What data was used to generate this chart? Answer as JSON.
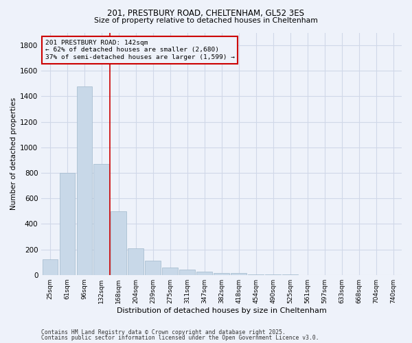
{
  "title1": "201, PRESTBURY ROAD, CHELTENHAM, GL52 3ES",
  "title2": "Size of property relative to detached houses in Cheltenham",
  "xlabel": "Distribution of detached houses by size in Cheltenham",
  "ylabel": "Number of detached properties",
  "categories": [
    "25sqm",
    "61sqm",
    "96sqm",
    "132sqm",
    "168sqm",
    "204sqm",
    "239sqm",
    "275sqm",
    "311sqm",
    "347sqm",
    "382sqm",
    "418sqm",
    "454sqm",
    "490sqm",
    "525sqm",
    "561sqm",
    "597sqm",
    "633sqm",
    "668sqm",
    "704sqm",
    "740sqm"
  ],
  "values": [
    120,
    800,
    1480,
    870,
    500,
    210,
    110,
    60,
    40,
    25,
    15,
    15,
    5,
    3,
    2,
    1,
    1,
    0,
    0,
    0,
    0
  ],
  "bar_color": "#c8d8e8",
  "bar_edge_color": "#a0b8cc",
  "vline_color": "#cc0000",
  "vline_x_index": 3,
  "annotation_text": "201 PRESTBURY ROAD: 142sqm\n← 62% of detached houses are smaller (2,680)\n37% of semi-detached houses are larger (1,599) →",
  "annotation_box_color": "#cc0000",
  "ylim": [
    0,
    1900
  ],
  "yticks": [
    0,
    200,
    400,
    600,
    800,
    1000,
    1200,
    1400,
    1600,
    1800
  ],
  "grid_color": "#d0d8e8",
  "footnote1": "Contains HM Land Registry data © Crown copyright and database right 2025.",
  "footnote2": "Contains public sector information licensed under the Open Government Licence v3.0.",
  "bg_color": "#eef2fa"
}
